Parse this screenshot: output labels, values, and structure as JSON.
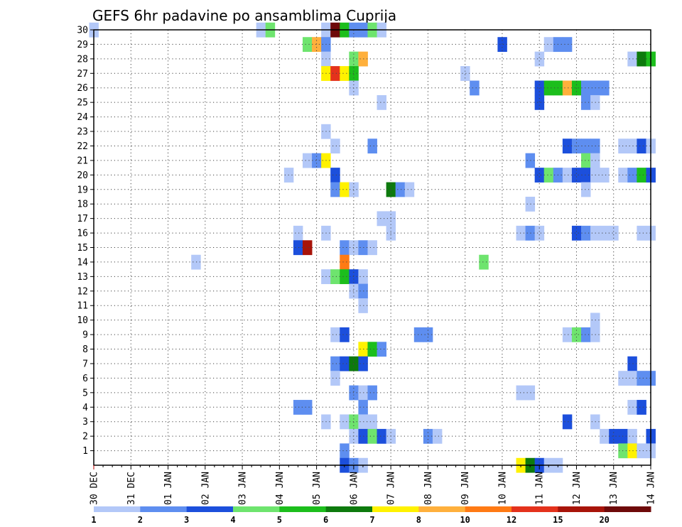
{
  "chart_data": {
    "type": "heatmap",
    "title": "GEFS 6hr padavine po ansamblima Cuprija",
    "xlabel": "",
    "ylabel": "",
    "x_tick_labels": [
      "30 DEC",
      "31 DEC",
      "01 JAN",
      "02 JAN",
      "03 JAN",
      "04 JAN",
      "05 JAN",
      "06 JAN",
      "07 JAN",
      "08 JAN",
      "09 JAN",
      "10 JAN",
      "11 JAN",
      "12 JAN",
      "13 JAN",
      "14 JAN"
    ],
    "y_tick_labels": [
      "1",
      "2",
      "3",
      "4",
      "5",
      "6",
      "7",
      "8",
      "9",
      "10",
      "11",
      "12",
      "13",
      "14",
      "15",
      "16",
      "17",
      "18",
      "19",
      "20",
      "21",
      "22",
      "23",
      "24",
      "25",
      "26",
      "27",
      "28",
      "29",
      "30"
    ],
    "xlim_steps": [
      0,
      60
    ],
    "ylim_members": [
      0,
      30
    ],
    "grid": true,
    "colorbar": {
      "position": "bottom",
      "labels": [
        "1",
        "2",
        "3",
        "4",
        "5",
        "6",
        "7",
        "8",
        "10",
        "12",
        "15",
        "20"
      ],
      "colors": [
        "#b3c8f8",
        "#5e8ef0",
        "#1c4fdc",
        "#6ee46e",
        "#1cbe1c",
        "#0d7a0d",
        "#fff200",
        "#ffb03c",
        "#ff7a14",
        "#e4321c",
        "#a8140a",
        "#6e0a0a"
      ]
    },
    "cell_units": "x = 6-hour step index from 30 DEC 00z, y = ensemble member (0 = control), value = colour class index",
    "cells": [
      [
        0,
        30,
        0
      ],
      [
        18,
        30,
        0
      ],
      [
        19,
        30,
        3
      ],
      [
        25,
        30,
        0
      ],
      [
        26,
        30,
        11
      ],
      [
        27,
        30,
        4
      ],
      [
        28,
        30,
        1
      ],
      [
        29,
        30,
        1
      ],
      [
        30,
        30,
        3
      ],
      [
        31,
        30,
        0
      ],
      [
        23,
        29,
        3
      ],
      [
        24,
        29,
        7
      ],
      [
        25,
        29,
        1
      ],
      [
        44,
        29,
        2
      ],
      [
        49,
        29,
        0
      ],
      [
        50,
        29,
        1
      ],
      [
        51,
        29,
        1
      ],
      [
        25,
        28,
        0
      ],
      [
        28,
        28,
        3
      ],
      [
        29,
        28,
        7
      ],
      [
        48,
        28,
        0
      ],
      [
        58,
        28,
        0
      ],
      [
        59,
        28,
        5
      ],
      [
        60,
        28,
        4
      ],
      [
        25,
        27,
        6
      ],
      [
        26,
        27,
        9
      ],
      [
        27,
        27,
        6
      ],
      [
        28,
        27,
        4
      ],
      [
        40,
        27,
        0
      ],
      [
        28,
        26,
        0
      ],
      [
        41,
        26,
        1
      ],
      [
        48,
        26,
        2
      ],
      [
        49,
        26,
        4
      ],
      [
        50,
        26,
        4
      ],
      [
        51,
        26,
        7
      ],
      [
        52,
        26,
        4
      ],
      [
        53,
        26,
        1
      ],
      [
        54,
        26,
        1
      ],
      [
        55,
        26,
        1
      ],
      [
        31,
        25,
        0
      ],
      [
        48,
        25,
        2
      ],
      [
        53,
        25,
        1
      ],
      [
        54,
        25,
        0
      ],
      [
        25,
        23,
        0
      ],
      [
        26,
        22,
        0
      ],
      [
        30,
        22,
        1
      ],
      [
        51,
        22,
        2
      ],
      [
        52,
        22,
        1
      ],
      [
        53,
        22,
        1
      ],
      [
        54,
        22,
        1
      ],
      [
        57,
        22,
        0
      ],
      [
        58,
        22,
        0
      ],
      [
        59,
        22,
        2
      ],
      [
        60,
        22,
        0
      ],
      [
        23,
        21,
        0
      ],
      [
        24,
        21,
        1
      ],
      [
        25,
        21,
        6
      ],
      [
        47,
        21,
        1
      ],
      [
        53,
        21,
        3
      ],
      [
        54,
        21,
        0
      ],
      [
        21,
        20,
        0
      ],
      [
        26,
        20,
        2
      ],
      [
        48,
        20,
        2
      ],
      [
        49,
        20,
        3
      ],
      [
        50,
        20,
        1
      ],
      [
        51,
        20,
        0
      ],
      [
        52,
        20,
        2
      ],
      [
        53,
        20,
        2
      ],
      [
        54,
        20,
        0
      ],
      [
        55,
        20,
        0
      ],
      [
        57,
        20,
        0
      ],
      [
        58,
        20,
        1
      ],
      [
        59,
        20,
        4
      ],
      [
        60,
        20,
        2
      ],
      [
        26,
        19,
        1
      ],
      [
        27,
        19,
        6
      ],
      [
        28,
        19,
        0
      ],
      [
        32,
        19,
        5
      ],
      [
        33,
        19,
        1
      ],
      [
        34,
        19,
        0
      ],
      [
        53,
        19,
        0
      ],
      [
        47,
        18,
        0
      ],
      [
        31,
        17,
        0
      ],
      [
        32,
        17,
        0
      ],
      [
        22,
        16,
        0
      ],
      [
        25,
        16,
        0
      ],
      [
        32,
        16,
        0
      ],
      [
        46,
        16,
        0
      ],
      [
        47,
        16,
        1
      ],
      [
        48,
        16,
        0
      ],
      [
        52,
        16,
        2
      ],
      [
        53,
        16,
        1
      ],
      [
        54,
        16,
        0
      ],
      [
        55,
        16,
        0
      ],
      [
        56,
        16,
        0
      ],
      [
        59,
        16,
        0
      ],
      [
        60,
        16,
        0
      ],
      [
        22,
        15,
        2
      ],
      [
        23,
        15,
        10
      ],
      [
        27,
        15,
        1
      ],
      [
        28,
        15,
        0
      ],
      [
        29,
        15,
        1
      ],
      [
        30,
        15,
        0
      ],
      [
        11,
        14,
        0
      ],
      [
        27,
        14,
        8
      ],
      [
        42,
        14,
        3
      ],
      [
        25,
        13,
        0
      ],
      [
        26,
        13,
        3
      ],
      [
        27,
        13,
        4
      ],
      [
        28,
        13,
        2
      ],
      [
        29,
        13,
        0
      ],
      [
        28,
        12,
        0
      ],
      [
        29,
        12,
        1
      ],
      [
        29,
        11,
        0
      ],
      [
        54,
        10,
        0
      ],
      [
        26,
        9,
        0
      ],
      [
        27,
        9,
        2
      ],
      [
        35,
        9,
        1
      ],
      [
        36,
        9,
        1
      ],
      [
        51,
        9,
        0
      ],
      [
        52,
        9,
        3
      ],
      [
        53,
        9,
        1
      ],
      [
        54,
        9,
        0
      ],
      [
        29,
        8,
        6
      ],
      [
        30,
        8,
        4
      ],
      [
        31,
        8,
        1
      ],
      [
        26,
        7,
        1
      ],
      [
        27,
        7,
        2
      ],
      [
        28,
        7,
        5
      ],
      [
        29,
        7,
        2
      ],
      [
        58,
        7,
        2
      ],
      [
        26,
        6,
        0
      ],
      [
        57,
        6,
        0
      ],
      [
        58,
        6,
        0
      ],
      [
        59,
        6,
        1
      ],
      [
        60,
        6,
        1
      ],
      [
        28,
        5,
        1
      ],
      [
        29,
        5,
        0
      ],
      [
        30,
        5,
        1
      ],
      [
        46,
        5,
        0
      ],
      [
        47,
        5,
        0
      ],
      [
        22,
        4,
        1
      ],
      [
        23,
        4,
        1
      ],
      [
        29,
        4,
        1
      ],
      [
        58,
        4,
        0
      ],
      [
        59,
        4,
        2
      ],
      [
        25,
        3,
        0
      ],
      [
        27,
        3,
        0
      ],
      [
        28,
        3,
        3
      ],
      [
        29,
        3,
        0
      ],
      [
        30,
        3,
        0
      ],
      [
        51,
        3,
        2
      ],
      [
        54,
        3,
        0
      ],
      [
        28,
        2,
        0
      ],
      [
        29,
        2,
        2
      ],
      [
        30,
        2,
        3
      ],
      [
        31,
        2,
        2
      ],
      [
        32,
        2,
        0
      ],
      [
        36,
        2,
        1
      ],
      [
        37,
        2,
        0
      ],
      [
        55,
        2,
        0
      ],
      [
        56,
        2,
        2
      ],
      [
        57,
        2,
        2
      ],
      [
        58,
        2,
        0
      ],
      [
        60,
        2,
        2
      ],
      [
        27,
        1,
        1
      ],
      [
        57,
        1,
        3
      ],
      [
        58,
        1,
        6
      ],
      [
        59,
        1,
        0
      ],
      [
        60,
        1,
        0
      ],
      [
        27,
        0,
        2
      ],
      [
        28,
        0,
        1
      ],
      [
        29,
        0,
        0
      ],
      [
        46,
        0,
        6
      ],
      [
        47,
        0,
        5
      ],
      [
        48,
        0,
        2
      ],
      [
        49,
        0,
        0
      ],
      [
        50,
        0,
        0
      ]
    ]
  }
}
